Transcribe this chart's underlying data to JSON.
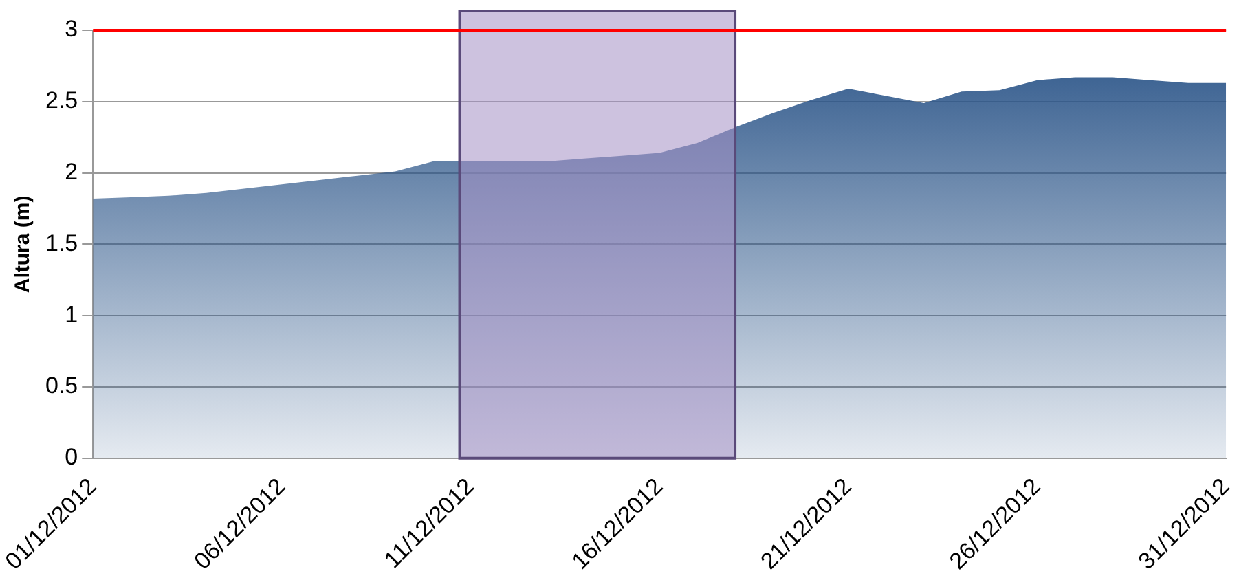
{
  "chart_data": {
    "type": "area",
    "ylabel": "Altura (m)",
    "x": [
      "2012-12-01",
      "2012-12-02",
      "2012-12-03",
      "2012-12-04",
      "2012-12-05",
      "2012-12-06",
      "2012-12-07",
      "2012-12-08",
      "2012-12-09",
      "2012-12-10",
      "2012-12-11",
      "2012-12-12",
      "2012-12-13",
      "2012-12-14",
      "2012-12-15",
      "2012-12-16",
      "2012-12-17",
      "2012-12-18",
      "2012-12-19",
      "2012-12-20",
      "2012-12-21",
      "2012-12-22",
      "2012-12-23",
      "2012-12-24",
      "2012-12-25",
      "2012-12-26",
      "2012-12-27",
      "2012-12-28",
      "2012-12-29",
      "2012-12-30",
      "2012-12-31"
    ],
    "series": [
      {
        "color": "#2a5488",
        "values": [
          1.82,
          1.83,
          1.84,
          1.86,
          1.89,
          1.92,
          1.95,
          1.98,
          2.01,
          2.08,
          2.08,
          2.08,
          2.08,
          2.1,
          2.12,
          2.14,
          2.21,
          2.32,
          2.42,
          2.51,
          2.59,
          2.54,
          2.49,
          2.57,
          2.58,
          2.65,
          2.67,
          2.67,
          2.65,
          2.63,
          2.63
        ]
      }
    ],
    "xlim": [
      "2012-12-01",
      "2012-12-31"
    ],
    "xticks": [
      {
        "value": "2012-12-01",
        "label": "01/12/2012"
      },
      {
        "value": "2012-12-06",
        "label": "06/12/2012"
      },
      {
        "value": "2012-12-11",
        "label": "11/12/2012"
      },
      {
        "value": "2012-12-16",
        "label": "16/12/2012"
      },
      {
        "value": "2012-12-21",
        "label": "21/12/2012"
      },
      {
        "value": "2012-12-26",
        "label": "26/12/2012"
      },
      {
        "value": "2012-12-31",
        "label": "31/12/2012"
      }
    ],
    "ylim": [
      0,
      3
    ],
    "yticks": [
      0,
      0.5,
      1,
      1.5,
      2,
      2.5,
      3
    ],
    "grid": "y",
    "ref_lines": [
      {
        "axis": "y",
        "value": 3,
        "color": "#ff0000"
      }
    ],
    "bands": [
      {
        "axis": "x",
        "from": "2012-12-10T17:00",
        "to": "2012-12-18",
        "color": "#a48fc4"
      }
    ]
  }
}
